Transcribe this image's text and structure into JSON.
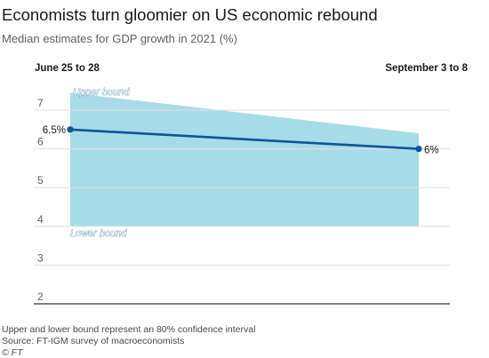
{
  "title": "Economists turn gloomier on US economic rebound",
  "subtitle": "Median estimates for GDP growth in 2021 (%)",
  "footer": {
    "note": "Upper and lower bound represent an 80% confidence interval",
    "source": "Source: FT-IGM survey of macroeconomists",
    "copyright": "© FT"
  },
  "chart_data": {
    "type": "line",
    "categories": [
      "June 25 to 28",
      "September 3 to 8"
    ],
    "series": [
      {
        "name": "Median estimate",
        "values": [
          6.5,
          6.0
        ],
        "point_labels": [
          "6.5%",
          "6%"
        ],
        "color": "#0f5499"
      }
    ],
    "band": {
      "upper": [
        7.45,
        6.4
      ],
      "lower": [
        4.0,
        4.0
      ],
      "upper_label": "Upper bound",
      "lower_label": "Lower bound",
      "color": "#a8dbe8"
    },
    "y_ticks": [
      2,
      3,
      4,
      5,
      6,
      7
    ],
    "ylim": [
      1.8,
      7.8
    ],
    "grid": true,
    "xlabel": "",
    "ylabel": ""
  }
}
